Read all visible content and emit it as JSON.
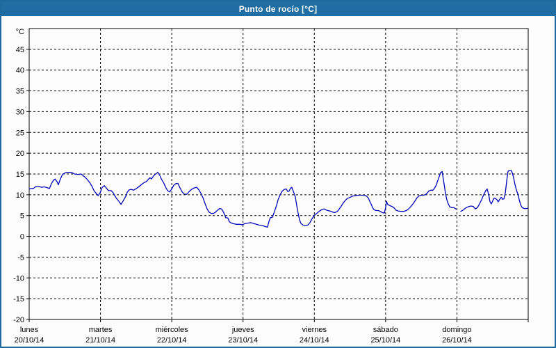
{
  "window": {
    "title": "Punto de rocío [°C]"
  },
  "colors": {
    "frame_blue": "#1e6a9e",
    "titlebar_blue": "#1f6da3",
    "title_text": "#ffffff",
    "line_blue": "#0000bb",
    "axis_black": "#000000",
    "background": "#fdfdfd"
  },
  "chart_data": {
    "type": "line",
    "title": "Punto de rocío [°C]",
    "ylabel": "°C",
    "unit_label": "°C",
    "ylim": [
      -20,
      50
    ],
    "ytick_step": 5,
    "yticks": [
      45,
      40,
      35,
      30,
      25,
      20,
      15,
      10,
      5,
      0,
      -5,
      -10,
      -15,
      -20
    ],
    "grid": "dashed",
    "legend": "none",
    "x_days": [
      {
        "name": "lunes",
        "date": "20/10/14"
      },
      {
        "name": "martes",
        "date": "21/10/14"
      },
      {
        "name": "miércoles",
        "date": "22/10/14"
      },
      {
        "name": "jueves",
        "date": "23/10/14"
      },
      {
        "name": "viernes",
        "date": "24/10/14"
      },
      {
        "name": "sábado",
        "date": "25/10/14"
      },
      {
        "name": "domingo",
        "date": "26/10/14"
      }
    ],
    "hours_total": 168,
    "series_name": "Punto de rocío",
    "segments": [
      [
        [
          0,
          11.4
        ],
        [
          0.7,
          11.5
        ],
        [
          1.4,
          11.5
        ],
        [
          2.3,
          12.0
        ],
        [
          3.3,
          12.0
        ],
        [
          4.2,
          11.8
        ],
        [
          5.1,
          11.9
        ],
        [
          6.1,
          11.7
        ],
        [
          6.8,
          11.5
        ],
        [
          7.5,
          12.7
        ],
        [
          8.2,
          13.5
        ],
        [
          8.7,
          13.8
        ],
        [
          9.4,
          13.1
        ],
        [
          9.8,
          12.4
        ],
        [
          10.5,
          13.8
        ],
        [
          11.2,
          14.9
        ],
        [
          12.2,
          15.3
        ],
        [
          12.9,
          15.4
        ],
        [
          13.6,
          15.4
        ],
        [
          14.5,
          15.3
        ],
        [
          15.2,
          15.0
        ],
        [
          16.4,
          14.9
        ],
        [
          17.5,
          15.0
        ],
        [
          18.7,
          14.3
        ],
        [
          19.4,
          13.8
        ],
        [
          20.4,
          12.9
        ],
        [
          21.1,
          12.1
        ],
        [
          21.8,
          11.0
        ],
        [
          22.7,
          10.2
        ],
        [
          23.2,
          9.8
        ],
        [
          23.9,
          10.5
        ],
        [
          24.6,
          11.8
        ],
        [
          25.3,
          12.2
        ],
        [
          26.0,
          11.6
        ],
        [
          26.7,
          11.0
        ],
        [
          27.6,
          11.0
        ],
        [
          28.3,
          10.5
        ],
        [
          29.2,
          9.3
        ],
        [
          30.2,
          8.4
        ],
        [
          30.9,
          7.7
        ],
        [
          31.6,
          8.5
        ],
        [
          32.5,
          9.6
        ],
        [
          33.0,
          10.6
        ],
        [
          33.7,
          11.2
        ],
        [
          34.4,
          11.3
        ],
        [
          35.1,
          11.1
        ],
        [
          35.6,
          11.3
        ],
        [
          36.3,
          11.6
        ],
        [
          37.2,
          12.1
        ],
        [
          37.9,
          12.5
        ],
        [
          38.6,
          12.9
        ],
        [
          39.5,
          13.2
        ],
        [
          40.2,
          13.8
        ],
        [
          40.7,
          14.1
        ],
        [
          41.2,
          13.8
        ],
        [
          41.9,
          14.6
        ],
        [
          42.6,
          15.0
        ],
        [
          43.3,
          15.4
        ],
        [
          44.0,
          14.6
        ],
        [
          44.5,
          13.8
        ],
        [
          45.4,
          12.7
        ],
        [
          46.1,
          11.6
        ],
        [
          46.6,
          11.0
        ],
        [
          47.3,
          10.7
        ],
        [
          48.0,
          11.4
        ],
        [
          48.7,
          12.3
        ],
        [
          49.4,
          12.7
        ],
        [
          50.1,
          12.7
        ],
        [
          50.8,
          11.6
        ],
        [
          51.5,
          10.7
        ],
        [
          52.2,
          10.2
        ],
        [
          52.9,
          10.1
        ],
        [
          53.3,
          10.3
        ],
        [
          54.0,
          10.9
        ],
        [
          54.7,
          11.3
        ],
        [
          55.4,
          11.6
        ],
        [
          56.4,
          11.8
        ],
        [
          57.1,
          11.2
        ],
        [
          57.8,
          10.4
        ],
        [
          58.5,
          9.3
        ],
        [
          59.2,
          7.9
        ],
        [
          59.9,
          6.6
        ],
        [
          60.6,
          5.8
        ],
        [
          61.3,
          5.5
        ],
        [
          62.0,
          5.5
        ],
        [
          62.7,
          5.8
        ],
        [
          63.4,
          6.3
        ],
        [
          64.1,
          6.7
        ],
        [
          64.8,
          6.6
        ],
        [
          65.5,
          5.7
        ],
        [
          66.2,
          4.5
        ],
        [
          66.9,
          4.4
        ],
        [
          67.4,
          3.5
        ],
        [
          68.1,
          3.2
        ],
        [
          69.0,
          3.0
        ],
        [
          70.0,
          2.9
        ],
        [
          70.9,
          2.9
        ],
        [
          71.8,
          2.8
        ],
        [
          72.7,
          3.1
        ],
        [
          73.7,
          3.2
        ],
        [
          74.6,
          3.3
        ],
        [
          75.6,
          3.1
        ],
        [
          76.5,
          2.9
        ],
        [
          77.4,
          2.7
        ],
        [
          78.4,
          2.6
        ],
        [
          79.3,
          2.4
        ],
        [
          80.2,
          2.2
        ],
        [
          80.7,
          3.5
        ],
        [
          81.2,
          4.5
        ],
        [
          81.9,
          4.6
        ],
        [
          82.6,
          6.0
        ],
        [
          83.3,
          7.5
        ],
        [
          83.8,
          8.8
        ],
        [
          84.5,
          10.0
        ],
        [
          85.2,
          10.9
        ],
        [
          85.9,
          11.3
        ],
        [
          86.6,
          11.4
        ],
        [
          87.0,
          10.8
        ],
        [
          87.5,
          10.9
        ],
        [
          88.0,
          11.6
        ],
        [
          88.4,
          11.8
        ],
        [
          89.1,
          10.5
        ],
        [
          89.6,
          9.5
        ],
        [
          90.3,
          6.5
        ],
        [
          91.0,
          4.0
        ],
        [
          91.5,
          3.1
        ],
        [
          92.2,
          2.7
        ],
        [
          93.1,
          2.6
        ],
        [
          93.8,
          2.7
        ],
        [
          94.5,
          3.3
        ],
        [
          95.2,
          4.2
        ],
        [
          95.9,
          5.0
        ],
        [
          96.6,
          5.4
        ],
        [
          97.3,
          5.8
        ],
        [
          98.0,
          6.2
        ],
        [
          98.7,
          6.5
        ],
        [
          99.4,
          6.6
        ],
        [
          100.1,
          6.3
        ],
        [
          101.1,
          6.1
        ],
        [
          102.0,
          5.9
        ],
        [
          102.7,
          5.7
        ],
        [
          103.6,
          5.9
        ],
        [
          104.3,
          6.5
        ],
        [
          105.0,
          7.2
        ],
        [
          105.7,
          8.0
        ],
        [
          106.4,
          8.6
        ],
        [
          107.1,
          9.1
        ],
        [
          108.1,
          9.4
        ],
        [
          109.0,
          9.7
        ],
        [
          110.0,
          9.8
        ],
        [
          110.9,
          9.9
        ],
        [
          111.8,
          9.9
        ],
        [
          112.8,
          9.9
        ],
        [
          113.5,
          9.7
        ],
        [
          114.2,
          9.2
        ],
        [
          114.6,
          8.5
        ],
        [
          115.1,
          7.8
        ],
        [
          115.6,
          6.9
        ],
        [
          116.1,
          6.4
        ],
        [
          116.8,
          6.2
        ],
        [
          117.5,
          6.2
        ],
        [
          118.2,
          6.0
        ],
        [
          118.9,
          5.7
        ],
        [
          119.6,
          5.6
        ],
        [
          120.0,
          7.0
        ],
        [
          120.3,
          8.4
        ],
        [
          120.7,
          7.7
        ],
        [
          121.4,
          7.4
        ],
        [
          122.1,
          7.2
        ],
        [
          122.8,
          6.9
        ],
        [
          123.5,
          6.3
        ],
        [
          124.2,
          6.1
        ],
        [
          125.2,
          6.0
        ],
        [
          126.1,
          6.0
        ],
        [
          127.0,
          6.2
        ],
        [
          127.7,
          6.6
        ],
        [
          128.4,
          7.1
        ],
        [
          129.1,
          7.7
        ],
        [
          129.8,
          8.4
        ],
        [
          130.5,
          9.2
        ],
        [
          131.2,
          9.7
        ],
        [
          131.9,
          9.9
        ],
        [
          132.6,
          9.9
        ],
        [
          133.3,
          10.0
        ],
        [
          134.0,
          10.4
        ],
        [
          134.5,
          10.9
        ],
        [
          135.2,
          11.1
        ],
        [
          135.9,
          11.1
        ],
        [
          136.4,
          11.5
        ],
        [
          137.1,
          12.4
        ],
        [
          137.5,
          13.3
        ],
        [
          138.0,
          14.3
        ],
        [
          138.5,
          15.3
        ],
        [
          139.0,
          15.6
        ],
        [
          139.2,
          14.8
        ],
        [
          139.7,
          12.5
        ],
        [
          140.1,
          10.5
        ],
        [
          140.6,
          8.8
        ],
        [
          141.1,
          7.8
        ],
        [
          141.6,
          7.1
        ],
        [
          142.3,
          6.9
        ],
        [
          143.0,
          6.9
        ],
        [
          143.7,
          6.6
        ]
      ],
      [
        [
          145.3,
          6.0
        ],
        [
          146.0,
          6.3
        ],
        [
          146.7,
          6.7
        ],
        [
          147.4,
          7.0
        ],
        [
          148.1,
          7.2
        ],
        [
          148.8,
          7.3
        ],
        [
          149.5,
          7.2
        ],
        [
          150.2,
          6.6
        ],
        [
          150.9,
          6.9
        ],
        [
          151.6,
          7.8
        ],
        [
          152.3,
          8.8
        ],
        [
          153.0,
          10.0
        ],
        [
          153.7,
          11.0
        ],
        [
          154.2,
          11.4
        ],
        [
          154.7,
          10.0
        ],
        [
          155.1,
          8.4
        ],
        [
          155.6,
          7.8
        ],
        [
          156.1,
          8.6
        ],
        [
          156.5,
          9.2
        ],
        [
          157.0,
          9.1
        ],
        [
          157.5,
          8.8
        ],
        [
          157.9,
          8.3
        ],
        [
          158.4,
          8.9
        ],
        [
          158.9,
          9.4
        ],
        [
          159.4,
          8.9
        ],
        [
          159.8,
          9.0
        ],
        [
          160.3,
          10.5
        ],
        [
          160.8,
          13.5
        ],
        [
          161.2,
          15.6
        ],
        [
          161.7,
          15.9
        ],
        [
          162.2,
          15.9
        ],
        [
          162.7,
          15.2
        ],
        [
          163.1,
          14.0
        ],
        [
          163.6,
          12.3
        ],
        [
          164.1,
          11.0
        ],
        [
          164.6,
          10.0
        ],
        [
          165.0,
          8.7
        ],
        [
          165.5,
          7.5
        ],
        [
          166.0,
          6.9
        ],
        [
          166.7,
          6.7
        ],
        [
          167.4,
          6.7
        ],
        [
          168.0,
          6.8
        ]
      ]
    ]
  }
}
